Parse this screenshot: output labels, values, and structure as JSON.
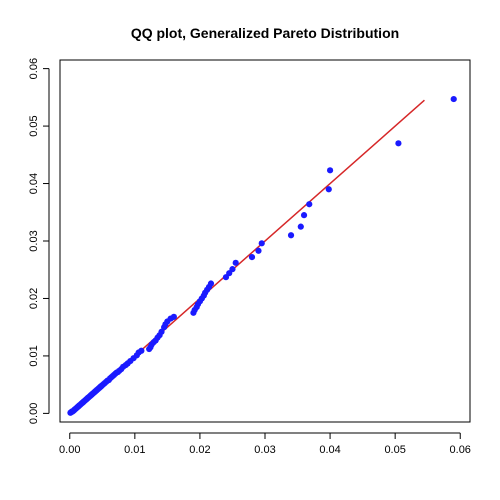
{
  "chart_data": {
    "type": "scatter",
    "title": "QQ plot, Generalized Pareto Distribution",
    "xlabel": "",
    "ylabel": "",
    "xlim": [
      -0.0015,
      0.0615
    ],
    "ylim": [
      -0.0015,
      0.0615
    ],
    "x_ticks": [
      0.0,
      0.01,
      0.02,
      0.03,
      0.04,
      0.05,
      0.06
    ],
    "y_ticks": [
      0.0,
      0.01,
      0.02,
      0.03,
      0.04,
      0.05,
      0.06
    ],
    "x_tick_labels": [
      "0.00",
      "0.01",
      "0.02",
      "0.03",
      "0.04",
      "0.05",
      "0.06"
    ],
    "y_tick_labels": [
      "0.00",
      "0.01",
      "0.02",
      "0.03",
      "0.04",
      "0.05",
      "0.06"
    ],
    "grid": false,
    "colors": {
      "points": "#1a1aff",
      "reference_line": "#d62728",
      "axis": "#000000"
    },
    "reference_line": {
      "x": [
        0.0,
        0.0545
      ],
      "y": [
        0.0,
        0.0545
      ]
    },
    "points": [
      [
        0.0001,
        0.0001
      ],
      [
        0.0002,
        0.0002
      ],
      [
        0.0003,
        0.0003
      ],
      [
        0.0004,
        0.0003
      ],
      [
        0.0005,
        0.0004
      ],
      [
        0.0006,
        0.0005
      ],
      [
        0.0007,
        0.0006
      ],
      [
        0.0008,
        0.0007
      ],
      [
        0.0009,
        0.0008
      ],
      [
        0.001,
        0.0009
      ],
      [
        0.0011,
        0.001
      ],
      [
        0.0012,
        0.0011
      ],
      [
        0.0013,
        0.0012
      ],
      [
        0.0014,
        0.0013
      ],
      [
        0.0015,
        0.0014
      ],
      [
        0.0016,
        0.0015
      ],
      [
        0.0017,
        0.0016
      ],
      [
        0.0018,
        0.0017
      ],
      [
        0.0019,
        0.0018
      ],
      [
        0.002,
        0.0019
      ],
      [
        0.0021,
        0.002
      ],
      [
        0.0022,
        0.0021
      ],
      [
        0.0023,
        0.0022
      ],
      [
        0.0024,
        0.0023
      ],
      [
        0.0025,
        0.0024
      ],
      [
        0.0026,
        0.0025
      ],
      [
        0.0027,
        0.0026
      ],
      [
        0.0028,
        0.0027
      ],
      [
        0.0029,
        0.0028
      ],
      [
        0.003,
        0.0029
      ],
      [
        0.0031,
        0.003
      ],
      [
        0.0032,
        0.0031
      ],
      [
        0.0033,
        0.0032
      ],
      [
        0.0034,
        0.0033
      ],
      [
        0.0035,
        0.0034
      ],
      [
        0.0036,
        0.0035
      ],
      [
        0.0037,
        0.0036
      ],
      [
        0.0038,
        0.0037
      ],
      [
        0.0039,
        0.0038
      ],
      [
        0.004,
        0.0039
      ],
      [
        0.0041,
        0.004
      ],
      [
        0.0042,
        0.0041
      ],
      [
        0.0043,
        0.0042
      ],
      [
        0.0044,
        0.0043
      ],
      [
        0.0045,
        0.0044
      ],
      [
        0.0046,
        0.0045
      ],
      [
        0.0047,
        0.0046
      ],
      [
        0.0048,
        0.0047
      ],
      [
        0.0049,
        0.0048
      ],
      [
        0.005,
        0.0049
      ],
      [
        0.0052,
        0.0051
      ],
      [
        0.0054,
        0.0053
      ],
      [
        0.0056,
        0.0055
      ],
      [
        0.0058,
        0.0057
      ],
      [
        0.006,
        0.0058
      ],
      [
        0.0062,
        0.0061
      ],
      [
        0.0064,
        0.0063
      ],
      [
        0.0066,
        0.0065
      ],
      [
        0.0068,
        0.0067
      ],
      [
        0.007,
        0.0069
      ],
      [
        0.0072,
        0.0071
      ],
      [
        0.0074,
        0.0072
      ],
      [
        0.0076,
        0.0074
      ],
      [
        0.0079,
        0.0077
      ],
      [
        0.0082,
        0.0081
      ],
      [
        0.0086,
        0.0084
      ],
      [
        0.0089,
        0.0087
      ],
      [
        0.0093,
        0.0091
      ],
      [
        0.0098,
        0.0096
      ],
      [
        0.0103,
        0.0101
      ],
      [
        0.0106,
        0.0106
      ],
      [
        0.011,
        0.0109
      ],
      [
        0.0122,
        0.0112
      ],
      [
        0.0124,
        0.0115
      ],
      [
        0.0126,
        0.012
      ],
      [
        0.0129,
        0.0124
      ],
      [
        0.0132,
        0.0127
      ],
      [
        0.0135,
        0.0132
      ],
      [
        0.0138,
        0.0136
      ],
      [
        0.0141,
        0.0142
      ],
      [
        0.0145,
        0.015
      ],
      [
        0.0147,
        0.0155
      ],
      [
        0.015,
        0.016
      ],
      [
        0.0155,
        0.0165
      ],
      [
        0.016,
        0.0168
      ],
      [
        0.019,
        0.0175
      ],
      [
        0.0192,
        0.018
      ],
      [
        0.0195,
        0.0185
      ],
      [
        0.0197,
        0.019
      ],
      [
        0.02,
        0.0195
      ],
      [
        0.0203,
        0.02
      ],
      [
        0.0206,
        0.0205
      ],
      [
        0.0208,
        0.021
      ],
      [
        0.0211,
        0.0215
      ],
      [
        0.0214,
        0.022
      ],
      [
        0.0217,
        0.0226
      ],
      [
        0.024,
        0.0237
      ],
      [
        0.0245,
        0.0244
      ],
      [
        0.025,
        0.0251
      ],
      [
        0.0255,
        0.0262
      ],
      [
        0.028,
        0.0272
      ],
      [
        0.029,
        0.0283
      ],
      [
        0.0295,
        0.0296
      ],
      [
        0.034,
        0.031
      ],
      [
        0.0355,
        0.0325
      ],
      [
        0.036,
        0.0345
      ],
      [
        0.0368,
        0.0364
      ],
      [
        0.0398,
        0.039
      ],
      [
        0.04,
        0.0423
      ],
      [
        0.0505,
        0.047
      ],
      [
        0.059,
        0.0547
      ]
    ]
  }
}
